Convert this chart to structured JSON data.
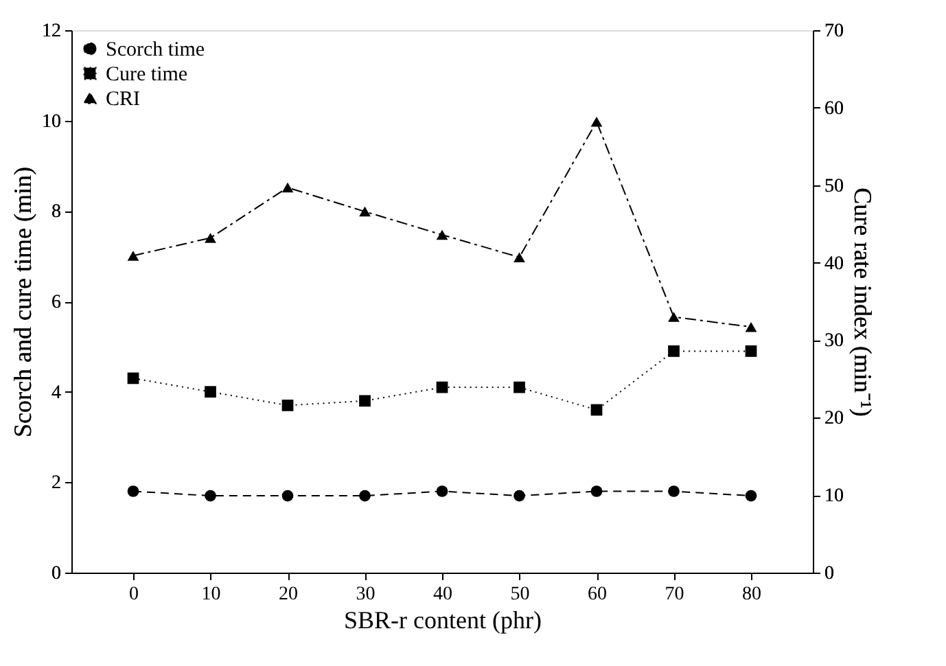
{
  "chart_data": {
    "type": "line",
    "xlabel": "SBR-r content (phr)",
    "ylabel": "Scorch and cure time (min)",
    "y2label": "Cure rate index (min⁻¹)",
    "x": [
      0,
      10,
      20,
      30,
      40,
      50,
      60,
      70,
      80
    ],
    "series": [
      {
        "name": "Scorch time",
        "color": "#000000",
        "marker": "circle",
        "line_style": "dashed",
        "values": [
          1.8,
          1.7,
          1.7,
          1.7,
          1.8,
          1.7,
          1.8,
          1.8,
          1.7
        ]
      },
      {
        "name": "Cure time",
        "color": "#000000",
        "marker": "square",
        "line_style": "dotted",
        "values": [
          4.3,
          4.0,
          3.7,
          3.8,
          4.1,
          4.1,
          3.6,
          4.9,
          4.9
        ]
      },
      {
        "name": "CRI",
        "color": "#000000",
        "marker": "triangle",
        "line_style": "dashdot",
        "axis": "y2",
        "values": [
          40.9,
          43.2,
          49.7,
          46.6,
          43.6,
          40.7,
          58.2,
          33.0,
          31.7
        ]
      }
    ],
    "xlim": [
      -8,
      88
    ],
    "xticks": [
      0,
      10,
      20,
      30,
      40,
      50,
      60,
      70,
      80
    ],
    "ylim": [
      0,
      12
    ],
    "yticks": [
      0,
      2,
      4,
      6,
      8,
      10,
      12
    ],
    "y2lim": [
      0,
      70
    ],
    "y2ticks": [
      0,
      10,
      20,
      30,
      40,
      50,
      60,
      70
    ],
    "legend": "top left",
    "grid": false
  }
}
